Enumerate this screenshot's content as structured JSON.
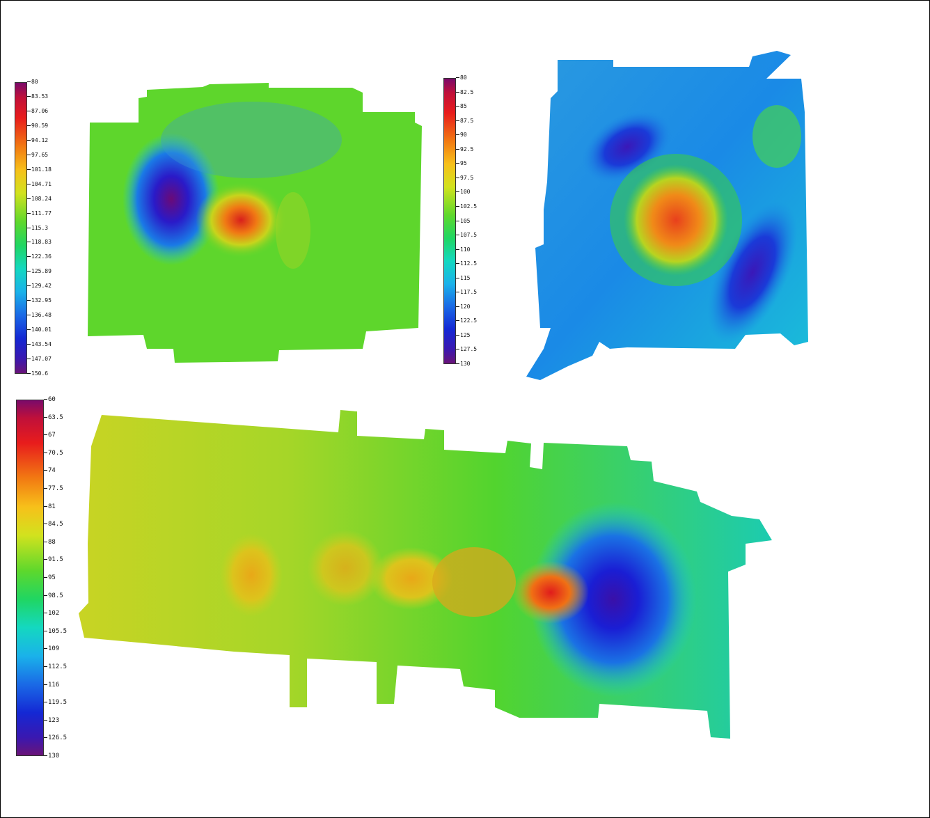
{
  "scales": [
    {
      "id": "top-left",
      "labels": [
        "80",
        "83.53",
        "87.06",
        "90.59",
        "94.12",
        "97.65",
        "101.18",
        "104.71",
        "108.24",
        "111.77",
        "115.3",
        "118.83",
        "122.36",
        "125.89",
        "129.42",
        "132.95",
        "136.48",
        "140.01",
        "143.54",
        "147.07",
        "150.6"
      ]
    },
    {
      "id": "top-right",
      "labels": [
        "80",
        "82.5",
        "85",
        "87.5",
        "90",
        "92.5",
        "95",
        "97.5",
        "100",
        "102.5",
        "105",
        "107.5",
        "110",
        "112.5",
        "115",
        "117.5",
        "120",
        "122.5",
        "125",
        "127.5",
        "130"
      ]
    },
    {
      "id": "bottom",
      "labels": [
        "60",
        "63.5",
        "67",
        "70.5",
        "74",
        "77.5",
        "81",
        "84.5",
        "88",
        "91.5",
        "95",
        "98.5",
        "102",
        "105.5",
        "109",
        "112.5",
        "116",
        "119.5",
        "123",
        "126.5",
        "130"
      ]
    }
  ],
  "colors": {
    "ramp": [
      "#7a0a6a",
      "#d11a2a",
      "#f04a14",
      "#f68a12",
      "#f7c01a",
      "#d8e020",
      "#8fe028",
      "#38d838",
      "#14d6a0",
      "#18c8e0",
      "#1a8ae8",
      "#1432d8",
      "#4a1aa8",
      "#6a1478"
    ]
  }
}
